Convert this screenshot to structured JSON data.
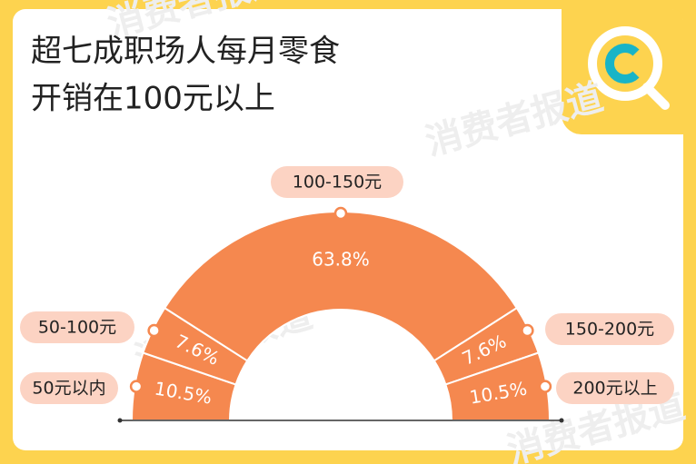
{
  "title_lines": [
    "超七成职场人每月零食",
    "开销在100元以上"
  ],
  "watermark": "消费者报道",
  "chart_data": {
    "type": "pie",
    "half": true,
    "categories": [
      "50元以内",
      "50-100元",
      "100-150元",
      "150-200元",
      "200元以上"
    ],
    "values": [
      10.5,
      7.6,
      63.8,
      7.6,
      10.5
    ],
    "value_labels": [
      "10.5%",
      "7.6%",
      "63.8%",
      "7.6%",
      "10.5%"
    ],
    "color": "#f5884f"
  }
}
